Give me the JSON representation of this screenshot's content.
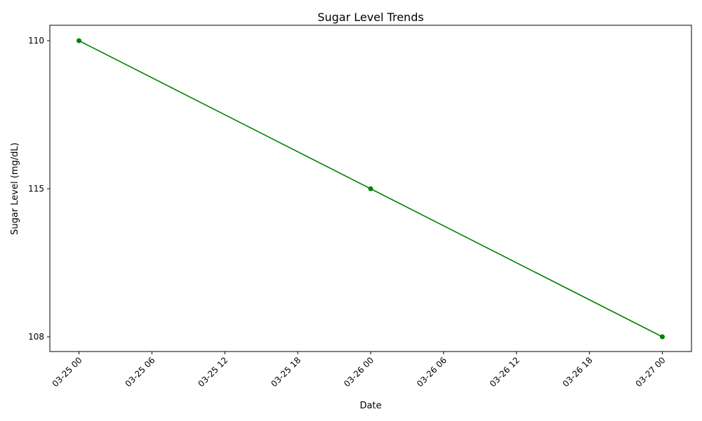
{
  "chart_data": {
    "type": "line",
    "title": "Sugar Level Trends",
    "xlabel": "Date",
    "ylabel": "Sugar Level (mg/dL)",
    "x_ticks": [
      "03-25 00",
      "03-25 06",
      "03-25 12",
      "03-25 18",
      "03-26 00",
      "03-26 06",
      "03-26 12",
      "03-26 18",
      "03-27 00"
    ],
    "y_ticks": [
      "110",
      "115",
      "108"
    ],
    "x": [
      "03-25 00",
      "03-26 00",
      "03-27 00"
    ],
    "y": [
      "110",
      "115",
      "108"
    ],
    "series_color": "#008000",
    "marker": "circle",
    "grid": false,
    "legend": "none"
  }
}
